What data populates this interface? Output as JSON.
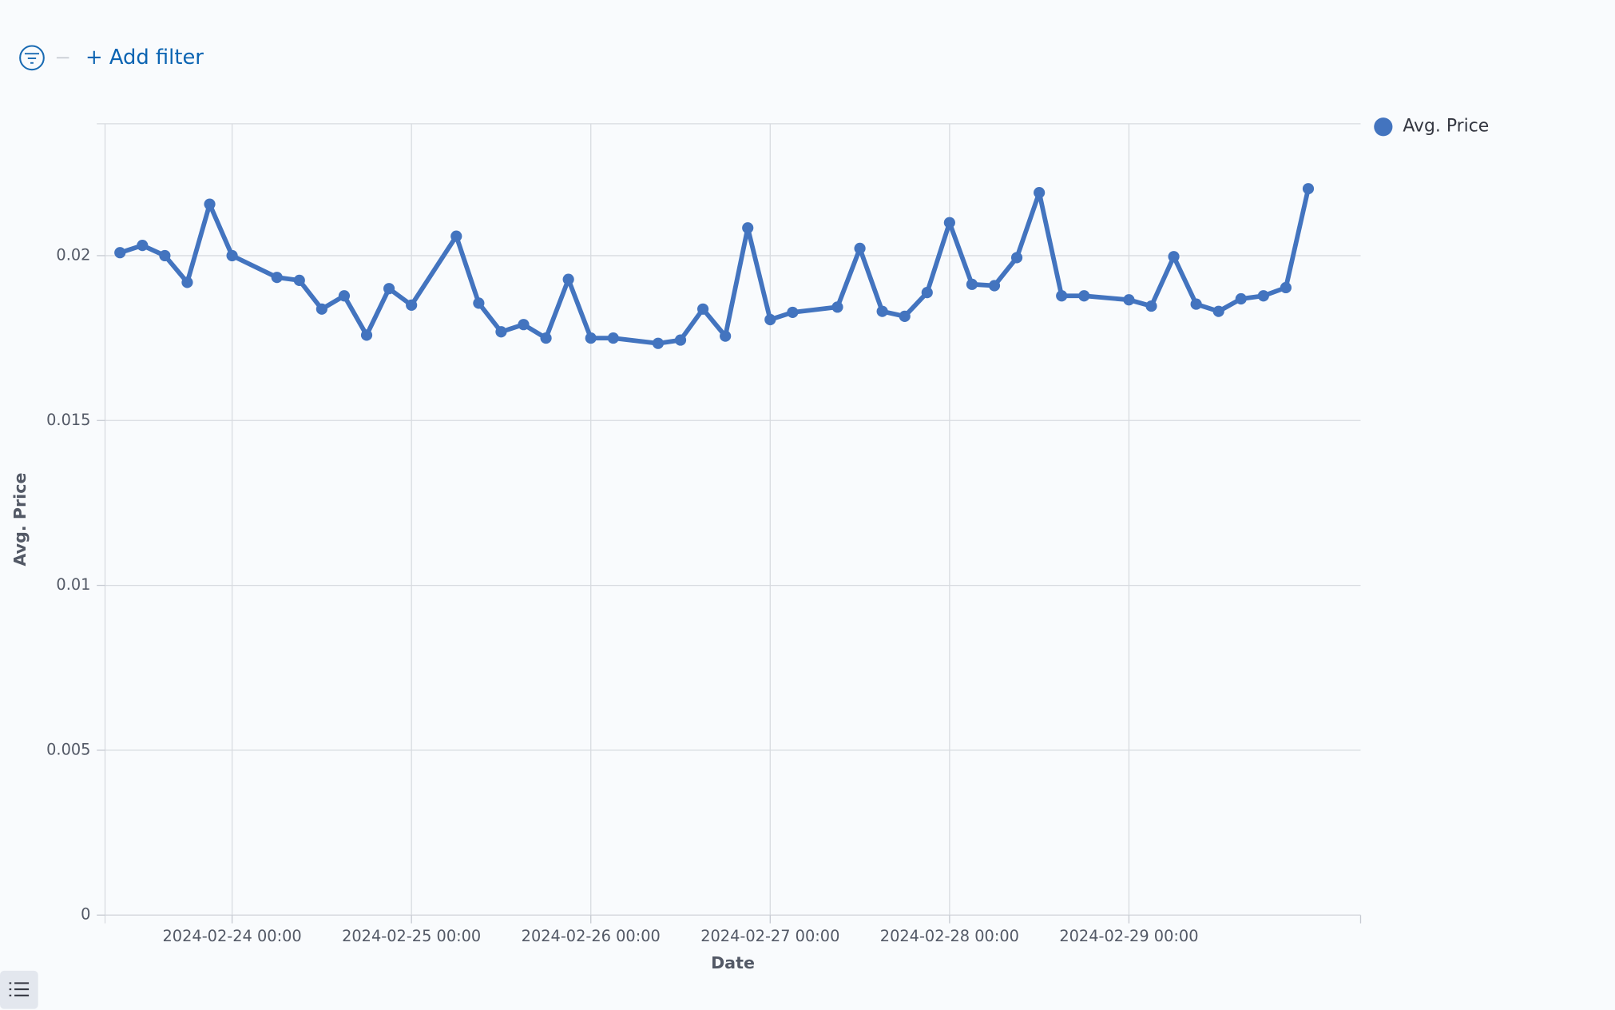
{
  "filter_bar": {
    "add_filter": "+ Add filter"
  },
  "chart_data": {
    "type": "line",
    "x_label": "Date",
    "y_label": "Avg. Price",
    "x": [
      "2024-02-23 09:00",
      "2024-02-23 12:00",
      "2024-02-23 15:00",
      "2024-02-23 18:00",
      "2024-02-23 21:00",
      "2024-02-24 00:00",
      "2024-02-24 06:00",
      "2024-02-24 09:00",
      "2024-02-24 12:00",
      "2024-02-24 15:00",
      "2024-02-24 18:00",
      "2024-02-24 21:00",
      "2024-02-25 00:00",
      "2024-02-25 06:00",
      "2024-02-25 09:00",
      "2024-02-25 12:00",
      "2024-02-25 15:00",
      "2024-02-25 18:00",
      "2024-02-25 21:00",
      "2024-02-26 00:00",
      "2024-02-26 03:00",
      "2024-02-26 09:00",
      "2024-02-26 12:00",
      "2024-02-26 15:00",
      "2024-02-26 18:00",
      "2024-02-26 21:00",
      "2024-02-27 00:00",
      "2024-02-27 03:00",
      "2024-02-27 09:00",
      "2024-02-27 12:00",
      "2024-02-27 15:00",
      "2024-02-27 18:00",
      "2024-02-27 21:00",
      "2024-02-28 00:00",
      "2024-02-28 03:00",
      "2024-02-28 06:00",
      "2024-02-28 09:00",
      "2024-02-28 12:00",
      "2024-02-28 15:00",
      "2024-02-28 18:00",
      "2024-02-29 00:00",
      "2024-02-29 03:00",
      "2024-02-29 06:00",
      "2024-02-29 09:00",
      "2024-02-29 12:00",
      "2024-02-29 15:00",
      "2024-02-29 18:00",
      "2024-02-29 21:00",
      "2024-03-01 00:00"
    ],
    "series": [
      {
        "name": "Avg. Price",
        "color": "#4374bf",
        "values": [
          0.02009,
          0.02031,
          0.02,
          0.01919,
          0.02156,
          0.02,
          0.01934,
          0.01925,
          0.01838,
          0.01878,
          0.01759,
          0.019,
          0.0185,
          0.02059,
          0.01856,
          0.01769,
          0.01791,
          0.0175,
          0.01928,
          0.0175,
          0.0175,
          0.01734,
          0.01744,
          0.01838,
          0.01756,
          0.02084,
          0.01806,
          0.01828,
          0.01844,
          0.02022,
          0.01831,
          0.01816,
          0.01888,
          0.021,
          0.01913,
          0.01909,
          0.01994,
          0.02191,
          0.01878,
          0.01878,
          0.01866,
          0.01847,
          0.01997,
          0.01853,
          0.01831,
          0.01869,
          0.01878,
          0.01903,
          0.02203
        ]
      }
    ],
    "xlim": [
      "2024-02-23 07:00",
      "2024-03-01 07:00"
    ],
    "xticks": [
      "2024-02-24 00:00",
      "2024-02-25 00:00",
      "2024-02-26 00:00",
      "2024-02-27 00:00",
      "2024-02-28 00:00",
      "2024-02-29 00:00"
    ],
    "ylim": [
      0,
      0.024
    ],
    "yticks": [
      0,
      0.005,
      0.01,
      0.015,
      0.02
    ],
    "grid": true,
    "legend": "top-right"
  }
}
